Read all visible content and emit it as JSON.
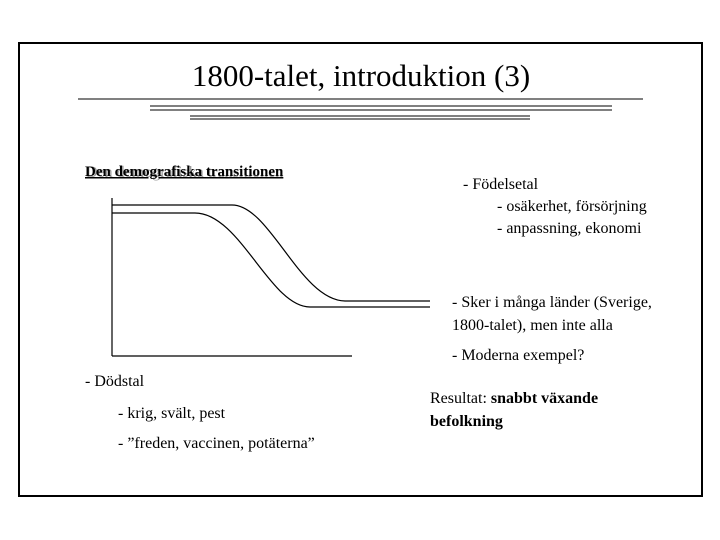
{
  "header": {
    "title": "1800-talet, introduktion (3)"
  },
  "diagram": {
    "label": "Den demografiska transitionen"
  },
  "right": {
    "birth": {
      "label": "-  Födelsetal",
      "items": [
        "-  osäkerhet, försörjning",
        "-  anpassning, ekonomi"
      ]
    },
    "spread": [
      "- Sker i många länder (Sverige,",
      "1800-talet), men inte alla"
    ],
    "modern": "- Moderna exempel?",
    "result": {
      "label": "Resultat:",
      "emphasis": [
        "snabbt växande",
        "befolkning"
      ]
    }
  },
  "left": {
    "death": {
      "label": "- Dödstal",
      "items": [
        "- krig, svält, pest",
        "- ”freden, vaccinen, potäterna”"
      ]
    }
  }
}
